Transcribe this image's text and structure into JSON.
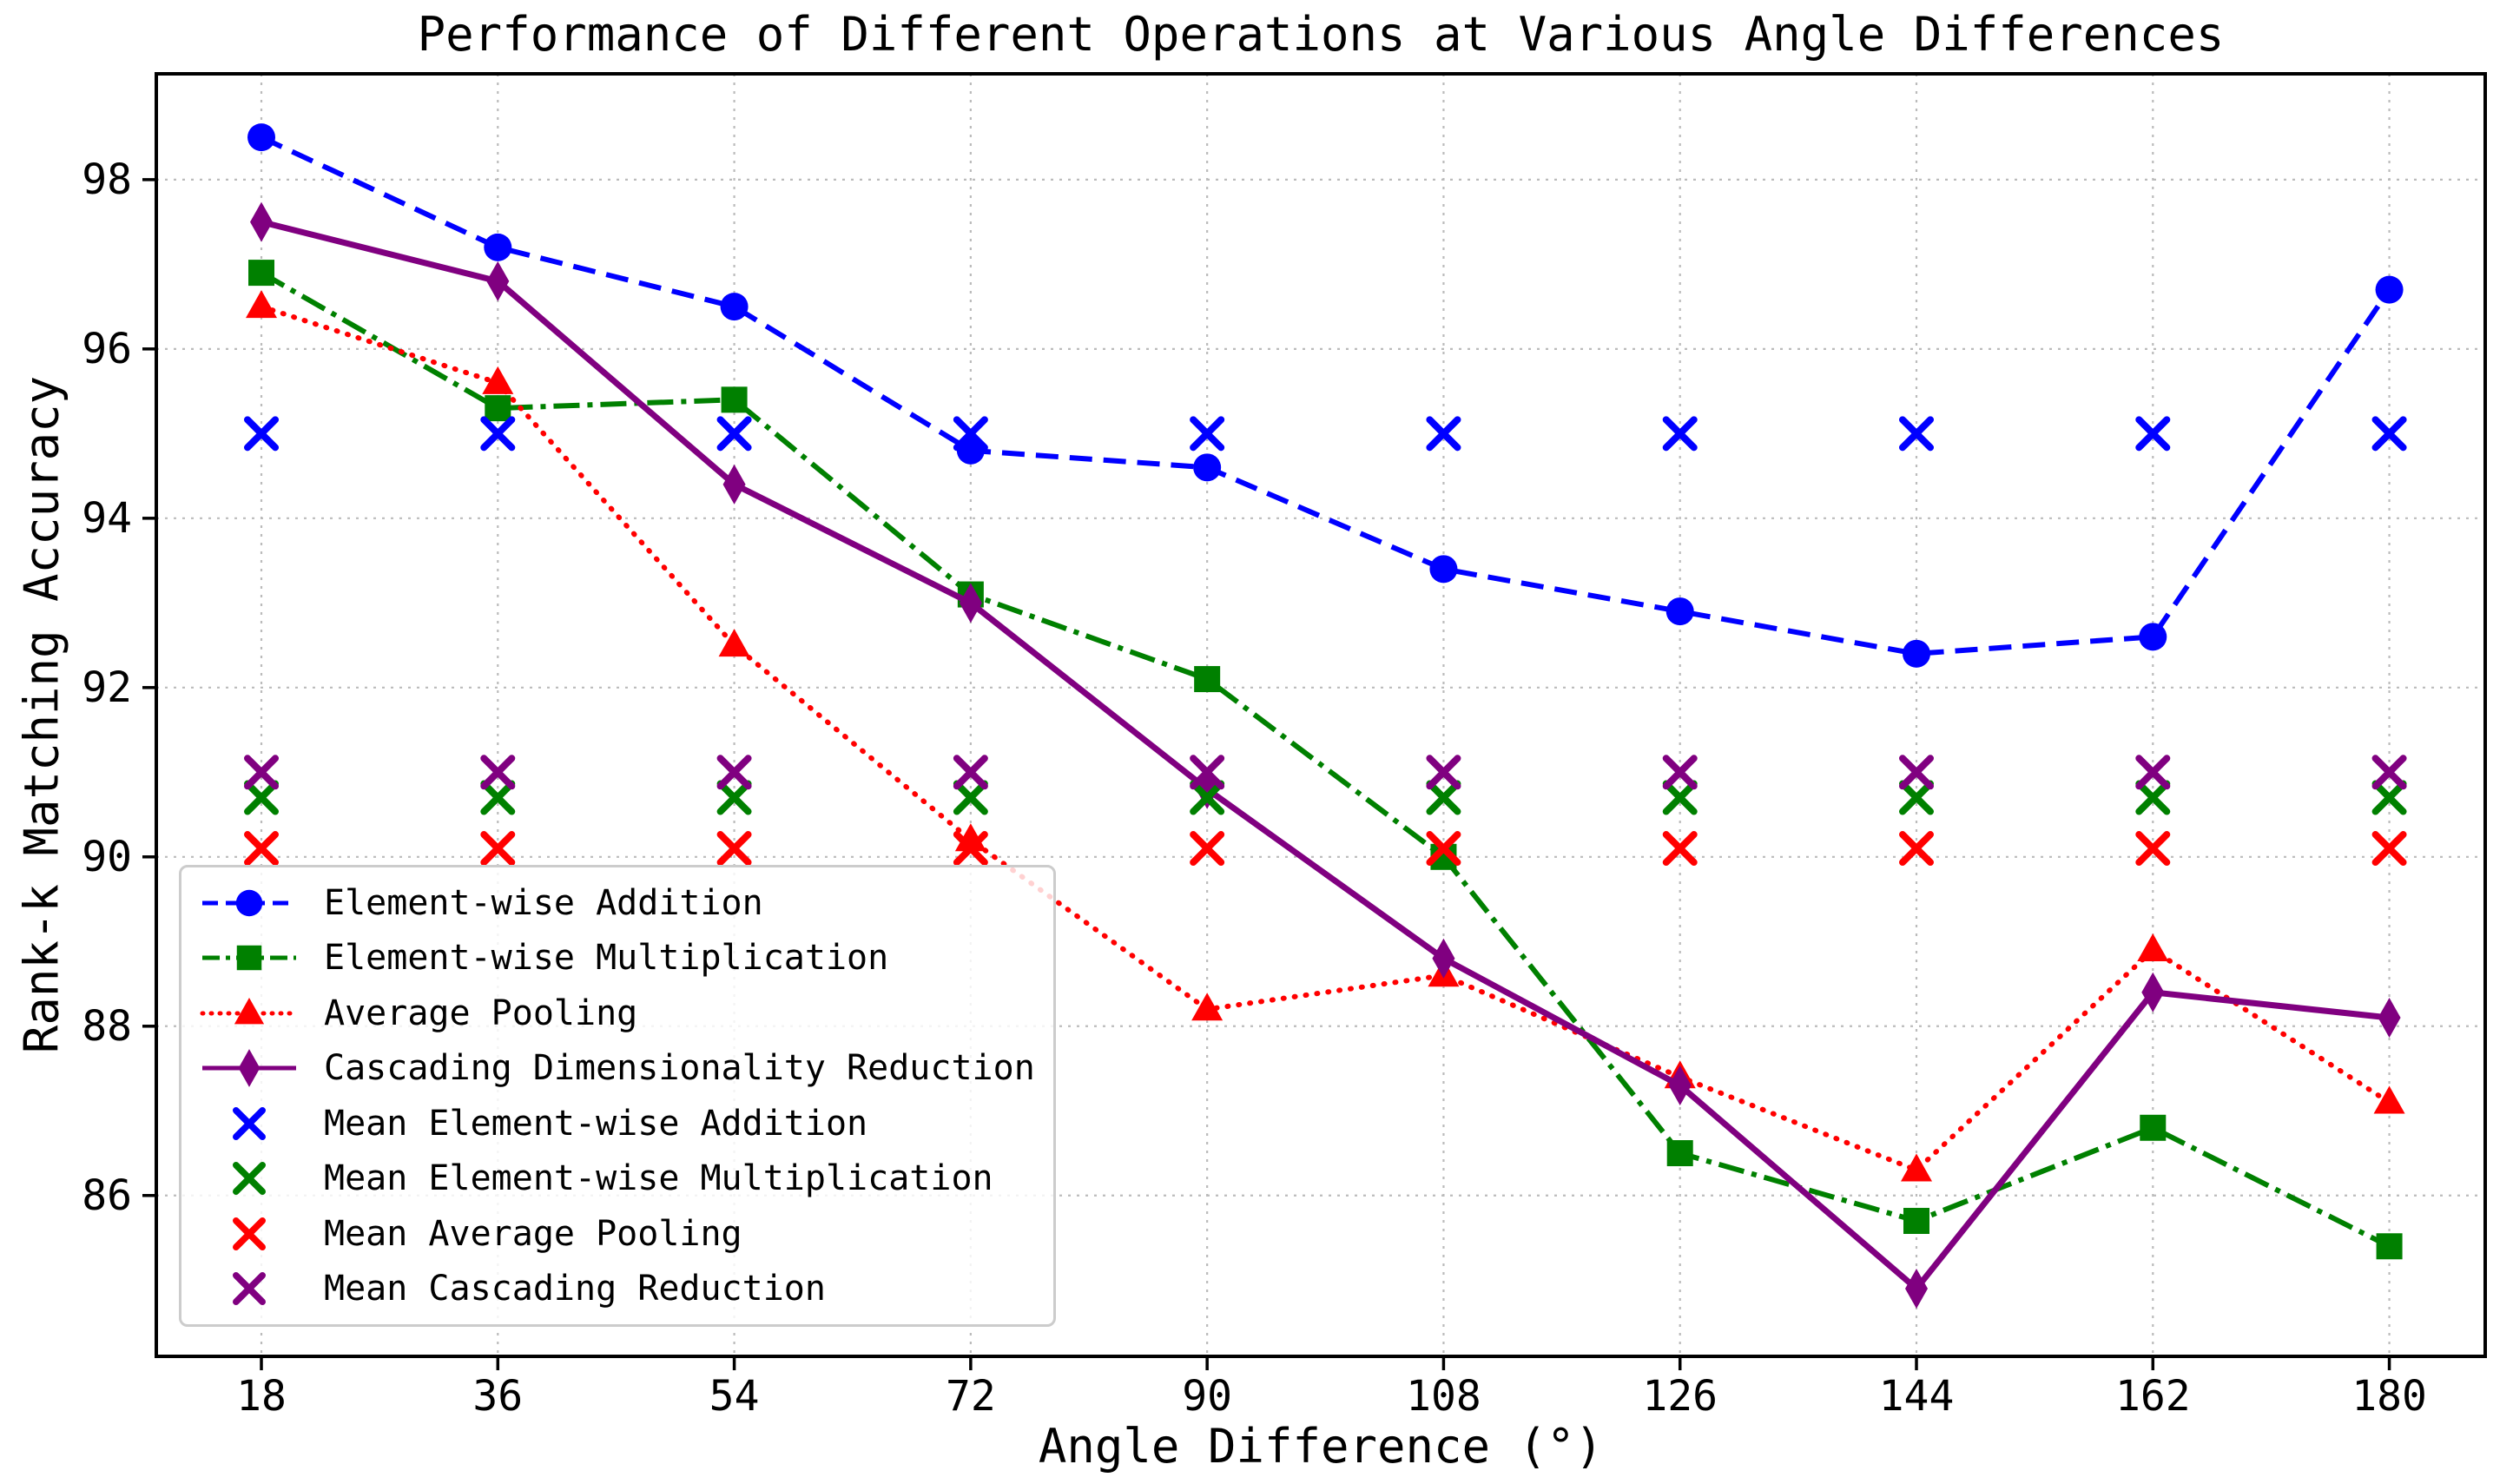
{
  "figure": {
    "background": "#ffffff"
  },
  "chart_data": {
    "type": "line",
    "title": "Performance of Different Operations at Various Angle Differences",
    "xlabel": "Angle Difference (°)",
    "ylabel": "Rank-k Matching Accuracy",
    "x": [
      18,
      36,
      54,
      72,
      90,
      108,
      126,
      144,
      162,
      180
    ],
    "xticks": [
      "18",
      "36",
      "54",
      "72",
      "90",
      "108",
      "126",
      "144",
      "162",
      "180"
    ],
    "yticks": [
      "86",
      "88",
      "90",
      "92",
      "94",
      "96",
      "98"
    ],
    "ytick_values": [
      86,
      88,
      90,
      92,
      94,
      96,
      98
    ],
    "xlim": [
      10,
      187.3
    ],
    "ylim": [
      84.1,
      99.25
    ],
    "grid": true,
    "grid_color": "#bbbbbb",
    "spine_color": "#000000",
    "legend_position": "lower-left",
    "series": [
      {
        "name": "Element-wise Addition",
        "color": "#0000ff",
        "linestyle": "dashed",
        "marker": "circle",
        "values": [
          98.5,
          97.2,
          96.5,
          94.8,
          94.6,
          93.4,
          92.9,
          92.4,
          92.6,
          96.7
        ]
      },
      {
        "name": "Element-wise Multiplication",
        "color": "#008000",
        "linestyle": "dashdot",
        "marker": "square",
        "values": [
          96.9,
          95.3,
          95.4,
          93.1,
          92.1,
          90.0,
          86.5,
          85.7,
          86.8,
          85.4
        ]
      },
      {
        "name": "Average Pooling",
        "color": "#ff0000",
        "linestyle": "dotted",
        "marker": "triangle",
        "values": [
          96.5,
          95.6,
          92.5,
          90.2,
          88.2,
          88.6,
          87.4,
          86.3,
          88.9,
          87.1
        ]
      },
      {
        "name": "Cascading Dimensionality Reduction",
        "color": "#800080",
        "linestyle": "solid",
        "marker": "diamond",
        "values": [
          97.5,
          96.8,
          94.4,
          93.0,
          90.8,
          88.8,
          87.3,
          84.9,
          88.4,
          88.1
        ]
      },
      {
        "name": "Mean Element-wise Addition",
        "color": "#0000ff",
        "linestyle": "none",
        "marker": "x",
        "mean": 95.0
      },
      {
        "name": "Mean Element-wise Multiplication",
        "color": "#008000",
        "linestyle": "none",
        "marker": "x",
        "mean": 90.7
      },
      {
        "name": "Mean Average Pooling",
        "color": "#ff0000",
        "linestyle": "none",
        "marker": "x",
        "mean": 90.1
      },
      {
        "name": "Mean Cascading Reduction",
        "color": "#800080",
        "linestyle": "none",
        "marker": "x",
        "mean": 91.0
      }
    ]
  }
}
